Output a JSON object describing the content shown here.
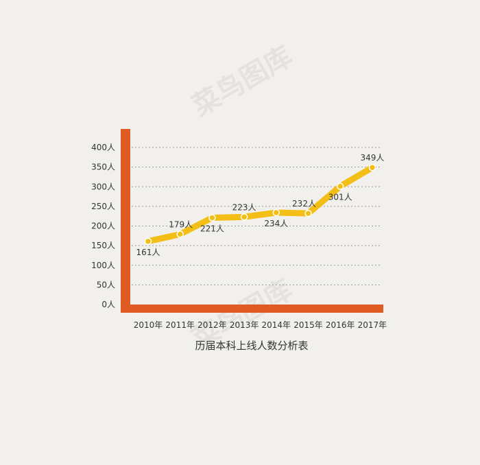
{
  "chart_data": {
    "type": "line",
    "title": "历届本科上线人数分析表",
    "xlabel": "",
    "ylabel": "",
    "categories": [
      "2010年",
      "2011年",
      "2012年",
      "2013年",
      "2014年",
      "2015年",
      "2016年",
      "2017年"
    ],
    "series": [
      {
        "values": [
          161,
          179,
          221,
          223,
          234,
          232,
          301,
          349
        ],
        "data_labels": [
          "161人",
          "179人",
          "221人",
          "223人",
          "234人",
          "232人",
          "301人",
          "349人"
        ]
      }
    ],
    "y_ticks": [
      0,
      50,
      100,
      150,
      200,
      250,
      300,
      350,
      400
    ],
    "y_tick_labels": [
      "0人",
      "50人",
      "100人",
      "150人",
      "200人",
      "250人",
      "300人",
      "350人",
      "400人"
    ],
    "ylim": [
      0,
      400
    ],
    "grid": true,
    "legend": "none",
    "colors": {
      "background": "#f2f0ec",
      "axis": "#e05a24",
      "line": "#f3bf16",
      "marker_fill": "#f3bf16",
      "marker_stroke": "#ffffff",
      "grid": "#9a9a9a",
      "text": "#333333"
    },
    "watermark": "菜鸟图库"
  }
}
